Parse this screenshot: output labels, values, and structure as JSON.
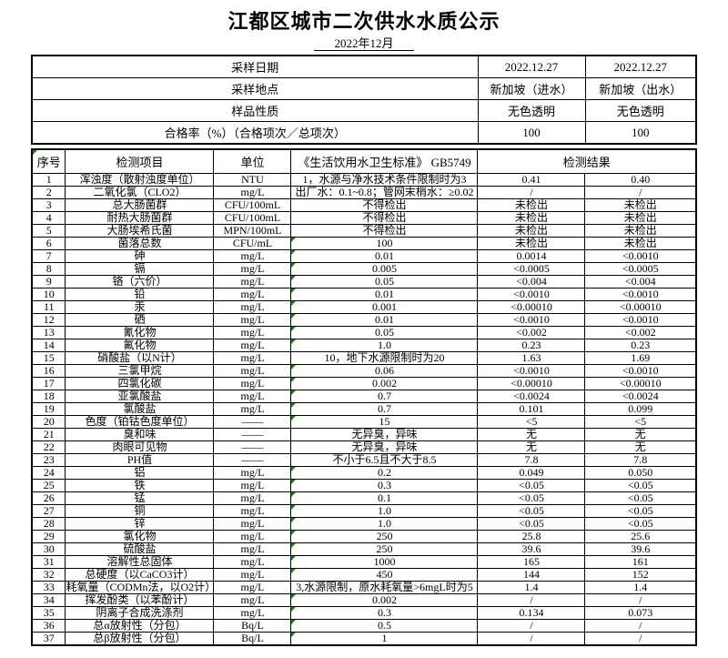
{
  "title": "江都区城市二次供水水质公示",
  "subtitle": "2022年12月",
  "colors": {
    "triangle_green": "#1e7e1e"
  },
  "summary": [
    {
      "label": "采样日期",
      "v1": "2022.12.27",
      "v2": "2022.12.27"
    },
    {
      "label": "采样地点",
      "v1": "新加坡（进水）",
      "v2": "新加坡（出水）"
    },
    {
      "label": "样品性质",
      "v1": "无色透明",
      "v2": "无色透明"
    },
    {
      "label": "合格率（%）（合格项次／总项次）",
      "v1": "100",
      "v2": "100"
    }
  ],
  "columns": {
    "no": "序号",
    "item": "检测项目",
    "unit": "单位",
    "standard": "《生活饮用水卫生标准》 GB5749",
    "result": "检测结果"
  },
  "rows": [
    {
      "no": "1",
      "item": "浑浊度（散射浊度单位）",
      "unit": "NTU",
      "standard": "1，水源与净水技术条件限制时为3",
      "r1": "0.41",
      "r2": "0.40",
      "flag": false
    },
    {
      "no": "2",
      "item": "二氧化氯（CLO2）",
      "unit": "mg/L",
      "standard": "出厂水：0.1~0.8；管网末梢水：≥0.02",
      "r1": "/",
      "r2": "/",
      "flag": false
    },
    {
      "no": "3",
      "item": "总大肠菌群",
      "unit": "CFU/100mL",
      "standard": "不得检出",
      "r1": "未检出",
      "r2": "未检出",
      "flag": false
    },
    {
      "no": "4",
      "item": "耐热大肠菌群",
      "unit": "CFU/100mL",
      "standard": "不得检出",
      "r1": "未检出",
      "r2": "未检出",
      "flag": false
    },
    {
      "no": "5",
      "item": "大肠埃希氏菌",
      "unit": "MPN/100mL",
      "standard": "不得检出",
      "r1": "未检出",
      "r2": "未检出",
      "flag": false
    },
    {
      "no": "6",
      "item": "菌落总数",
      "unit": "CFU/mL",
      "standard": "100",
      "r1": "未检出",
      "r2": "未检出",
      "flag": true
    },
    {
      "no": "7",
      "item": "砷",
      "unit": "mg/L",
      "standard": "0.01",
      "r1": "0.0014",
      "r2": "<0.0010",
      "flag": true
    },
    {
      "no": "8",
      "item": "镉",
      "unit": "mg/L",
      "standard": "0.005",
      "r1": "<0.0005",
      "r2": "<0.0005",
      "flag": true
    },
    {
      "no": "9",
      "item": "铬（六价）",
      "unit": "mg/L",
      "standard": "0.05",
      "r1": "<0.004",
      "r2": "<0.004",
      "flag": true
    },
    {
      "no": "10",
      "item": "铅",
      "unit": "mg/L",
      "standard": "0.01",
      "r1": "<0.0010",
      "r2": "<0.0010",
      "flag": true
    },
    {
      "no": "11",
      "item": "汞",
      "unit": "mg/L",
      "standard": "0.001",
      "r1": "<0.00010",
      "r2": "<0.00010",
      "flag": true
    },
    {
      "no": "12",
      "item": "硒",
      "unit": "mg/L",
      "standard": "0.01",
      "r1": "<0.0010",
      "r2": "<0.0010",
      "flag": true
    },
    {
      "no": "13",
      "item": "氰化物",
      "unit": "mg/L",
      "standard": "0.05",
      "r1": "<0.002",
      "r2": "<0.002",
      "flag": true
    },
    {
      "no": "14",
      "item": "氟化物",
      "unit": "mg/L",
      "standard": "1.0",
      "r1": "0.23",
      "r2": "0.23",
      "flag": true
    },
    {
      "no": "15",
      "item": "硝酸盐（以N计）",
      "unit": "mg/L",
      "standard": "10，地下水源限制时为20",
      "r1": "1.63",
      "r2": "1.69",
      "flag": false
    },
    {
      "no": "16",
      "item": "三氯甲烷",
      "unit": "mg/L",
      "standard": "0.06",
      "r1": "<0.0010",
      "r2": "<0.0010",
      "flag": true
    },
    {
      "no": "17",
      "item": "四氯化碳",
      "unit": "mg/L",
      "standard": "0.002",
      "r1": "<0.00010",
      "r2": "<0.00010",
      "flag": true
    },
    {
      "no": "18",
      "item": "亚氯酸盐",
      "unit": "mg/L",
      "standard": "0.7",
      "r1": "<0.0024",
      "r2": "<0.0024",
      "flag": true
    },
    {
      "no": "19",
      "item": "氯酸盐",
      "unit": "mg/L",
      "standard": "0.7",
      "r1": "0.101",
      "r2": "0.099",
      "flag": true
    },
    {
      "no": "20",
      "item": "色度（铂钴色度单位）",
      "unit": "——",
      "standard": "15",
      "r1": "<5",
      "r2": "<5",
      "flag": true
    },
    {
      "no": "21",
      "item": "臭和味",
      "unit": "——",
      "standard": "无异臭，异味",
      "r1": "无",
      "r2": "无",
      "flag": false
    },
    {
      "no": "22",
      "item": "肉眼可见物",
      "unit": "——",
      "standard": "无异臭，异味",
      "r1": "无",
      "r2": "无",
      "flag": false
    },
    {
      "no": "23",
      "item": "PH值",
      "unit": "——",
      "standard": "不小于6.5且不大于8.5",
      "r1": "7.8",
      "r2": "7.8",
      "flag": false
    },
    {
      "no": "24",
      "item": "铝",
      "unit": "mg/L",
      "standard": "0.2",
      "r1": "0.049",
      "r2": "0.050",
      "flag": true
    },
    {
      "no": "25",
      "item": "铁",
      "unit": "mg/L",
      "standard": "0.3",
      "r1": "<0.05",
      "r2": "<0.05",
      "flag": true
    },
    {
      "no": "26",
      "item": "锰",
      "unit": "mg/L",
      "standard": "0.1",
      "r1": "<0.05",
      "r2": "<0.05",
      "flag": true
    },
    {
      "no": "27",
      "item": "铜",
      "unit": "mg/L",
      "standard": "1.0",
      "r1": "<0.05",
      "r2": "<0.05",
      "flag": true
    },
    {
      "no": "28",
      "item": "锌",
      "unit": "mg/L",
      "standard": "1.0",
      "r1": "<0.05",
      "r2": "<0.05",
      "flag": true
    },
    {
      "no": "29",
      "item": "氯化物",
      "unit": "mg/L",
      "standard": "250",
      "r1": "25.8",
      "r2": "25.6",
      "flag": true
    },
    {
      "no": "30",
      "item": "硫酸盐",
      "unit": "mg/L",
      "standard": "250",
      "r1": "39.6",
      "r2": "39.6",
      "flag": true
    },
    {
      "no": "31",
      "item": "溶解性总固体",
      "unit": "mg/L",
      "standard": "1000",
      "r1": "165",
      "r2": "161",
      "flag": true
    },
    {
      "no": "32",
      "item": "总硬度（以CaCO3计）",
      "unit": "mg/L",
      "standard": "450",
      "r1": "144",
      "r2": "152",
      "flag": true
    },
    {
      "no": "33",
      "item": "耗氧量（CODMn法，以O2计）",
      "unit": "mg/L",
      "standard": "3,水源限制，原水耗氧量>6mgL时为5",
      "r1": "1.4",
      "r2": "1.4",
      "flag": false
    },
    {
      "no": "34",
      "item": "挥发酚类（以苯酚计）",
      "unit": "mg/L",
      "standard": "0.002",
      "r1": "/",
      "r2": "/",
      "flag": true
    },
    {
      "no": "35",
      "item": "阴离子合成洗涤剂",
      "unit": "mg/L",
      "standard": "0.3",
      "r1": "0.134",
      "r2": "0.073",
      "flag": true
    },
    {
      "no": "36",
      "item": "总α放射性（分包）",
      "unit": "Bq/L",
      "standard": "0.5",
      "r1": "/",
      "r2": "/",
      "flag": true
    },
    {
      "no": "37",
      "item": "总β放射性（分包）",
      "unit": "Bq/L",
      "standard": "1",
      "r1": "/",
      "r2": "/",
      "flag": true
    }
  ]
}
